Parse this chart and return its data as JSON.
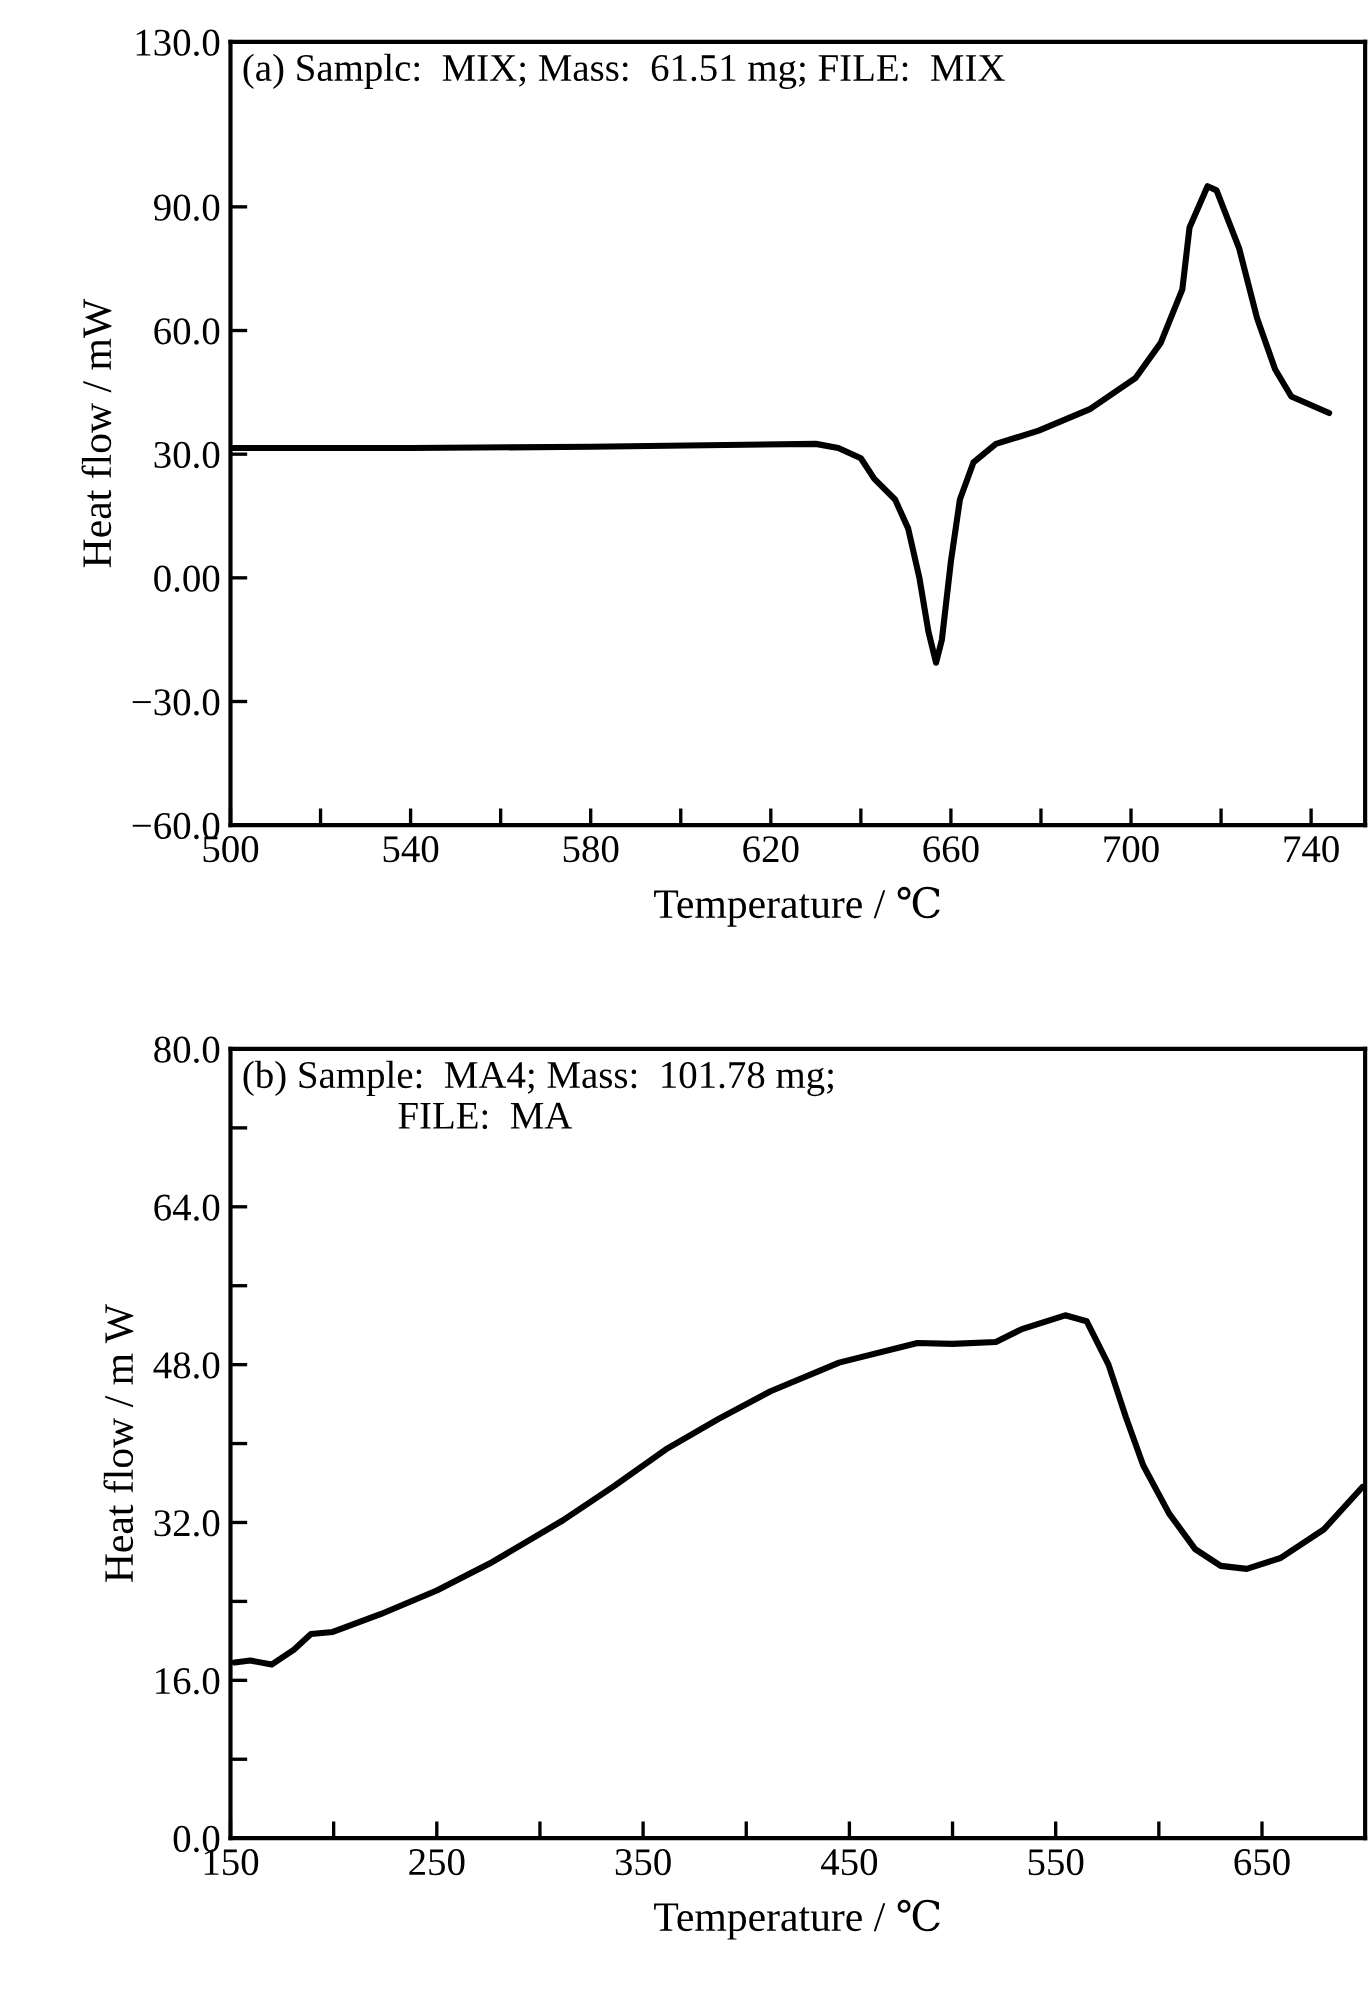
{
  "chart_data": [
    {
      "type": "line",
      "xlabel": "Temperature / ℃",
      "ylabel": "Heat flow / mW",
      "annotations": [
        "(a) Samplc:  MIX; Mass:  61.51 mg; FILE:  MIX"
      ],
      "grid": false,
      "marker": "none",
      "line_style": "solid",
      "xlim": [
        500,
        752
      ],
      "ylim": [
        -60,
        130
      ],
      "xticks": [
        500,
        {
          "value": 520,
          "label": null
        },
        540,
        {
          "value": 560,
          "label": null
        },
        580,
        {
          "value": 600,
          "label": null
        },
        620,
        {
          "value": 640,
          "label": null
        },
        660,
        {
          "value": 680,
          "label": null
        },
        700,
        {
          "value": 720,
          "label": null
        },
        740
      ],
      "yticks": [
        {
          "value": -60,
          "label": "−60.0"
        },
        {
          "value": -30,
          "label": "−30.0"
        },
        {
          "value": 0,
          "label": "0.00"
        },
        {
          "value": 30,
          "label": "30.0"
        },
        {
          "value": 60,
          "label": "60.0"
        },
        {
          "value": 90,
          "label": "90.0"
        },
        {
          "value": 130,
          "label": "130.0"
        }
      ],
      "series": [
        {
          "color": "#000000",
          "x": [
            500,
            540,
            580,
            630,
            635,
            640,
            643,
            647.6,
            650.5,
            653,
            655,
            656.7,
            658,
            660,
            662,
            665,
            670,
            679.5,
            691,
            701,
            706.6,
            711.4,
            713,
            717,
            719,
            724,
            728,
            732,
            735.6,
            744
          ],
          "values": [
            31.5,
            31.5,
            31.8,
            32.5,
            31.5,
            29,
            24,
            19,
            12,
            0,
            -13,
            -20.6,
            -15,
            4,
            19,
            28,
            32.5,
            35.7,
            41,
            48.5,
            57,
            70,
            85,
            95,
            94,
            80,
            63,
            50.6,
            44,
            40
          ]
        }
      ]
    },
    {
      "type": "line",
      "xlabel": "Temperature / ℃",
      "ylabel": "Heat flow / m W",
      "annotations": [
        "(b) Sample:  MA4; Mass:  101.78 mg;\n                FILE:  MA"
      ],
      "grid": false,
      "marker": "none",
      "line_style": "solid",
      "xlim": [
        150,
        700
      ],
      "ylim": [
        0,
        80
      ],
      "xticks": [
        150,
        {
          "value": 200,
          "label": null
        },
        250,
        {
          "value": 300,
          "label": null
        },
        350,
        {
          "value": 400,
          "label": null
        },
        450,
        {
          "value": 500,
          "label": null
        },
        550,
        {
          "value": 600,
          "label": null
        },
        650
      ],
      "yticks": [
        {
          "value": 0,
          "label": "0.0"
        },
        {
          "value": 8,
          "label": null
        },
        {
          "value": 16,
          "label": "16.0"
        },
        {
          "value": 24,
          "label": null
        },
        {
          "value": 32,
          "label": "32.0"
        },
        {
          "value": 40,
          "label": null
        },
        {
          "value": 48,
          "label": "48.0"
        },
        {
          "value": 56,
          "label": null
        },
        {
          "value": 64,
          "label": "64.0"
        },
        {
          "value": 72,
          "label": null
        },
        {
          "value": 80,
          "label": "80.0"
        }
      ],
      "series": [
        {
          "color": "#000000",
          "x": [
            152,
            159.7,
            170,
            180.7,
            189,
            199.6,
            222.7,
            250,
            277,
            311,
            336,
            361,
            386.6,
            411.8,
            445,
            483,
            500,
            521,
            533.6,
            554.6,
            565,
            575.6,
            584,
            592.4,
            605,
            617.6,
            630,
            642.6,
            659,
            680,
            698.7
          ],
          "values": [
            17.8,
            18,
            17.6,
            19.1,
            20.7,
            20.9,
            22.7,
            25.1,
            28,
            32.2,
            35.7,
            39.4,
            42.5,
            45.3,
            48.2,
            50.2,
            50.1,
            50.3,
            51.6,
            53,
            52.4,
            48,
            42.7,
            37.8,
            32.9,
            29.3,
            27.6,
            27.3,
            28.4,
            31.3,
            35.6
          ]
        }
      ]
    }
  ]
}
